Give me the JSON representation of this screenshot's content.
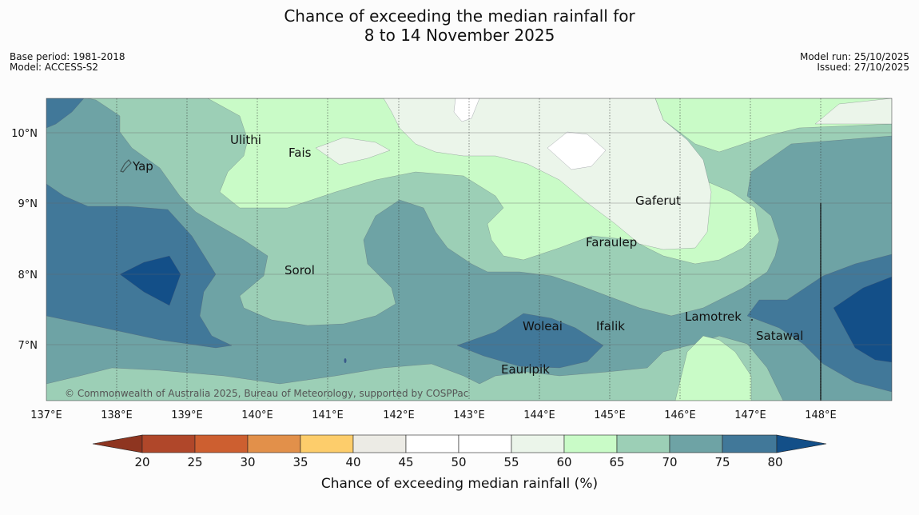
{
  "title": {
    "line1": "Chance of exceeding the median rainfall for",
    "line2": "8 to 14 November 2025"
  },
  "meta": {
    "base_period": "Base period: 1981-2018",
    "model": "Model: ACCESS-S2",
    "model_run": "Model run: 25/10/2025",
    "issued": "Issued: 27/10/2025"
  },
  "map": {
    "lon_ticks": [
      "137°E",
      "138°E",
      "139°E",
      "140°E",
      "141°E",
      "142°E",
      "143°E",
      "144°E",
      "145°E",
      "146°E",
      "147°E",
      "148°E"
    ],
    "lat_ticks": [
      "10°N",
      "9°N",
      "8°N",
      "7°N"
    ],
    "places": {
      "yap": "Yap",
      "ulithi": "Ulithi",
      "fais": "Fais",
      "gaferut": "Gaferut",
      "faraulep": "Faraulep",
      "sorol": "Sorol",
      "lamotrek": "Lamotrek",
      "woleai": "Woleai",
      "ifalik": "Ifalik",
      "satawal": "Satawal",
      "eauripik": "Eauripik"
    },
    "copyright": "© Commonwealth of Australia 2025, Bureau of Meteorology, supported by COSPPac"
  },
  "colorbar": {
    "label": "Chance of exceeding median rainfall (%)",
    "ticks": [
      "20",
      "25",
      "30",
      "35",
      "40",
      "45",
      "50",
      "55",
      "60",
      "65",
      "70",
      "75",
      "80"
    ],
    "colors": {
      "below_20": "#8e3520",
      "c20_25": "#b0472a",
      "c25_30": "#cd5f30",
      "c30_35": "#e2904a",
      "c35_40": "#fdcd6b",
      "c40_45": "#ecebe5",
      "c45_50": "#ffffff",
      "c50_55": "#ffffff",
      "c55_60": "#ebf5ea",
      "c60_65": "#c9fbc7",
      "c65_70": "#9ccfb6",
      "c70_75": "#6ea3a5",
      "c75_80": "#417899",
      "above_80": "#134f88"
    }
  }
}
